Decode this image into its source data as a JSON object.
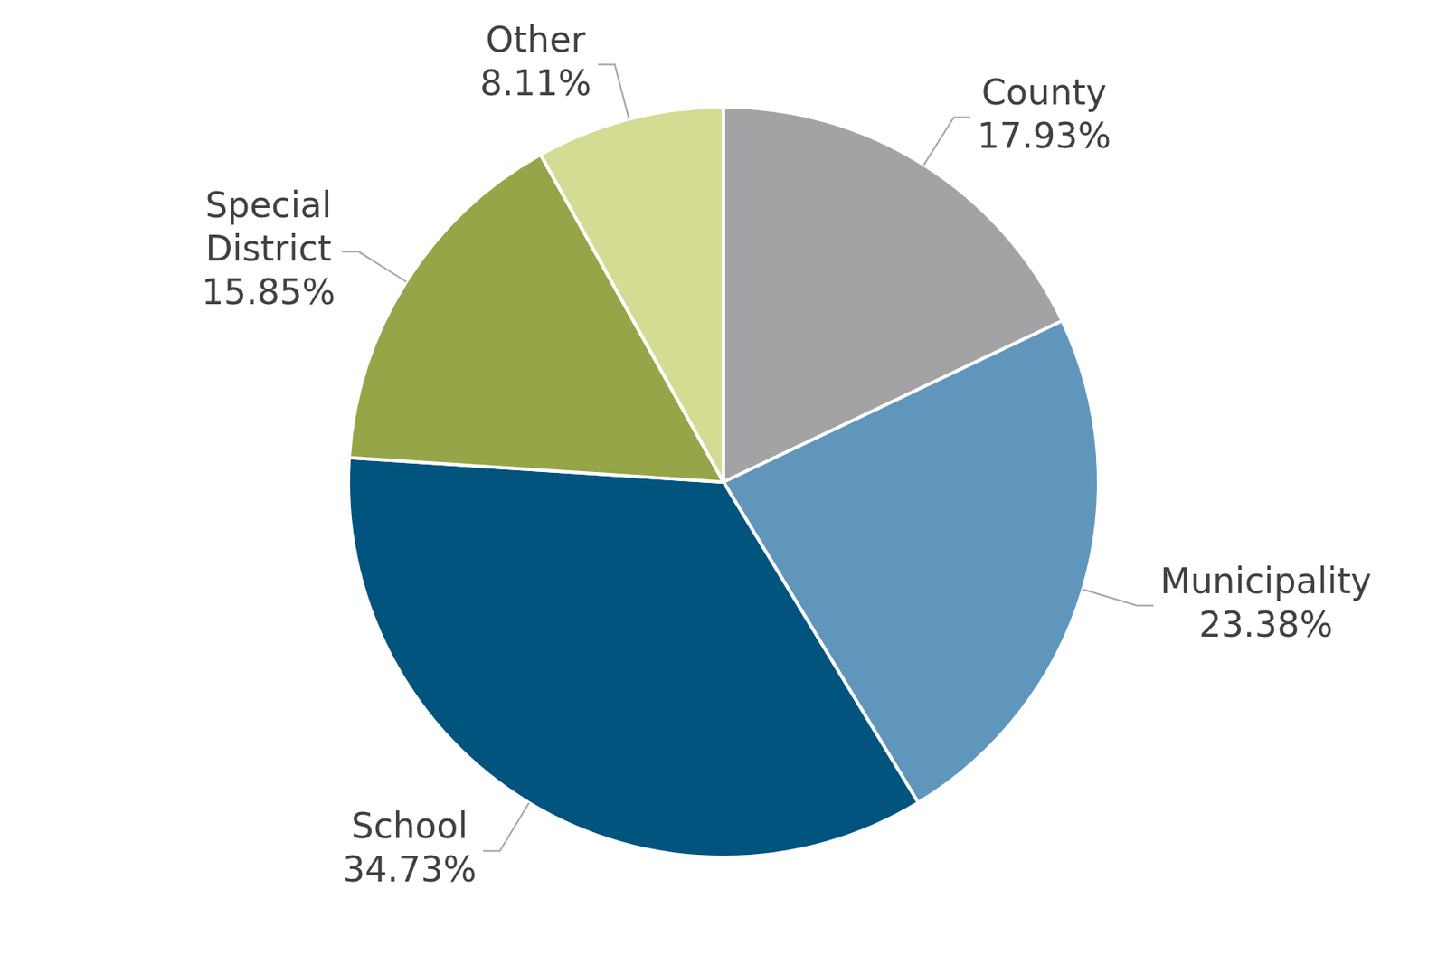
{
  "chart_data": {
    "type": "pie",
    "categories": [
      "County",
      "Municipality",
      "School",
      "Special District",
      "Other"
    ],
    "values": [
      17.93,
      23.38,
      34.73,
      15.85,
      8.11
    ],
    "value_labels": [
      "17.93%",
      "23.38%",
      "34.73%",
      "15.85%",
      "8.11%"
    ],
    "colors": [
      "#a3a3a5",
      "#6096bb",
      "#00547e",
      "#95a548",
      "#d4db92"
    ],
    "data_labels": true
  }
}
